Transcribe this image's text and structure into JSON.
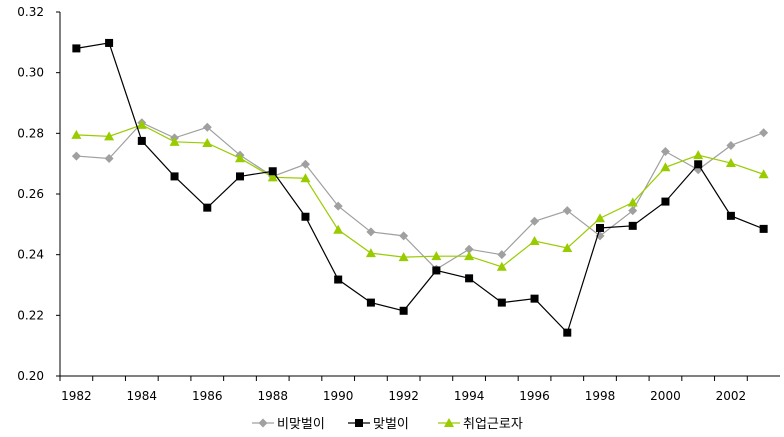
{
  "chart_data": {
    "type": "line",
    "title": "",
    "xlabel": "",
    "ylabel": "",
    "x": [
      1982,
      1983,
      1984,
      1985,
      1986,
      1987,
      1988,
      1989,
      1990,
      1991,
      1992,
      1993,
      1994,
      1995,
      1996,
      1997,
      1998,
      1999,
      2000,
      2001,
      2002,
      2003
    ],
    "x_tick_labels": [
      "1982",
      "1984",
      "1986",
      "1988",
      "1990",
      "1992",
      "1994",
      "1996",
      "1998",
      "2000",
      "2002"
    ],
    "y_tick_labels": [
      "0.20",
      "0.22",
      "0.24",
      "0.26",
      "0.28",
      "0.30",
      "0.32"
    ],
    "ylim": [
      0.2,
      0.32
    ],
    "xlim": [
      1981.5,
      2003.5
    ],
    "grid": false,
    "legend_position": "bottom",
    "series": [
      {
        "name": "비맞벌이",
        "color": "#a0a0a0",
        "marker": "diamond",
        "values": [
          0.2725,
          0.2717,
          0.2835,
          0.2785,
          0.282,
          0.2728,
          0.2658,
          0.2698,
          0.256,
          0.2475,
          0.2462,
          0.2352,
          0.2418,
          0.24,
          0.251,
          0.2545,
          0.2462,
          0.2545,
          0.274,
          0.268,
          0.276,
          0.2802
        ]
      },
      {
        "name": "맞벌이",
        "color": "#000000",
        "marker": "square",
        "values": [
          0.308,
          0.3098,
          0.2775,
          0.2658,
          0.2555,
          0.2658,
          0.2675,
          0.2525,
          0.2318,
          0.2242,
          0.2215,
          0.2348,
          0.2322,
          0.2242,
          0.2255,
          0.2143,
          0.2488,
          0.2495,
          0.2575,
          0.2698,
          0.2528,
          0.2485
        ]
      },
      {
        "name": "취업근로자",
        "color": "#99cc00",
        "marker": "triangle",
        "values": [
          0.2795,
          0.279,
          0.2828,
          0.2772,
          0.2768,
          0.2718,
          0.2655,
          0.2652,
          0.2482,
          0.2405,
          0.2392,
          0.2395,
          0.2395,
          0.236,
          0.2445,
          0.2422,
          0.252,
          0.2572,
          0.2688,
          0.2728,
          0.2702,
          0.2665
        ]
      }
    ]
  }
}
